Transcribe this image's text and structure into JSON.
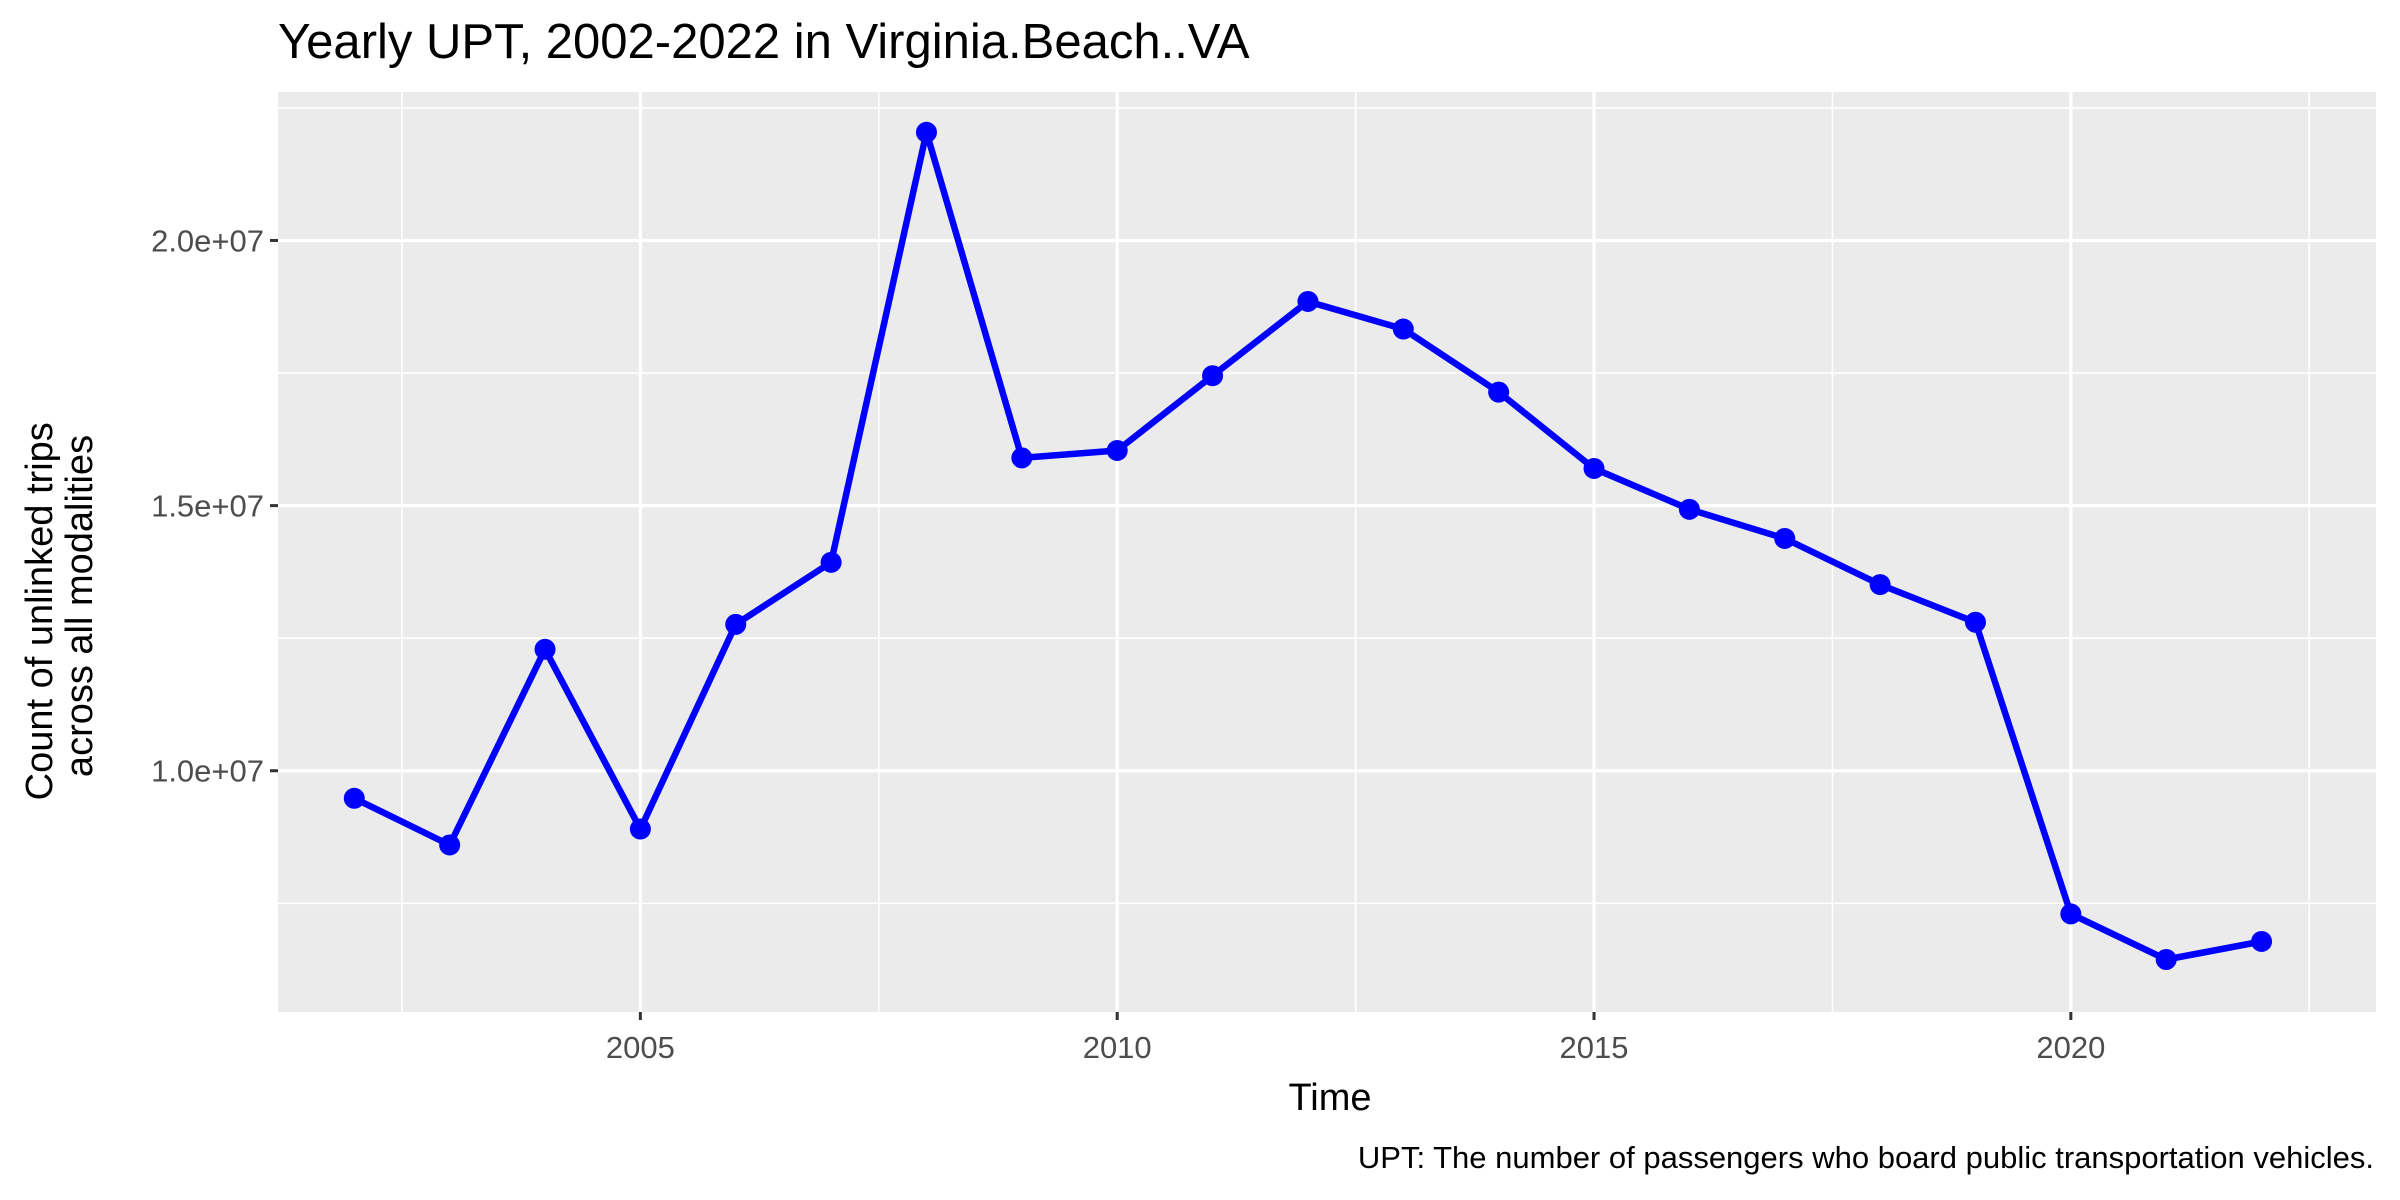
{
  "chart_data": {
    "type": "line",
    "title": "Yearly UPT, 2002-2022 in Virginia.Beach..VA",
    "xlabel": "Time",
    "ylabel": [
      "Count of unlinked trips",
      "across all modalities"
    ],
    "caption": "UPT: The number of passengers who board public transportation vehicles.",
    "xlim": [
      2001.2,
      2023.2
    ],
    "ylim": [
      5450000,
      22800000
    ],
    "x_ticks": [
      2005,
      2010,
      2015,
      2020
    ],
    "x_tick_labels": [
      "2005",
      "2010",
      "2015",
      "2020"
    ],
    "y_ticks": [
      10000000,
      15000000,
      20000000
    ],
    "y_tick_labels": [
      "1.0e+07",
      "1.5e+07",
      "2.0e+07"
    ],
    "grid": true,
    "x": [
      2002,
      2003,
      2004,
      2005,
      2006,
      2007,
      2008,
      2009,
      2010,
      2011,
      2012,
      2013,
      2014,
      2015,
      2016,
      2017,
      2018,
      2019,
      2020,
      2021,
      2022
    ],
    "series": [
      {
        "color": "#0000ff",
        "values": [
          9480000,
          8600000,
          12290000,
          8900000,
          12760000,
          13930000,
          22040000,
          15900000,
          16040000,
          17450000,
          18850000,
          18330000,
          17140000,
          15700000,
          14930000,
          14380000,
          13510000,
          12800000,
          7300000,
          6440000,
          6780000
        ]
      }
    ]
  }
}
